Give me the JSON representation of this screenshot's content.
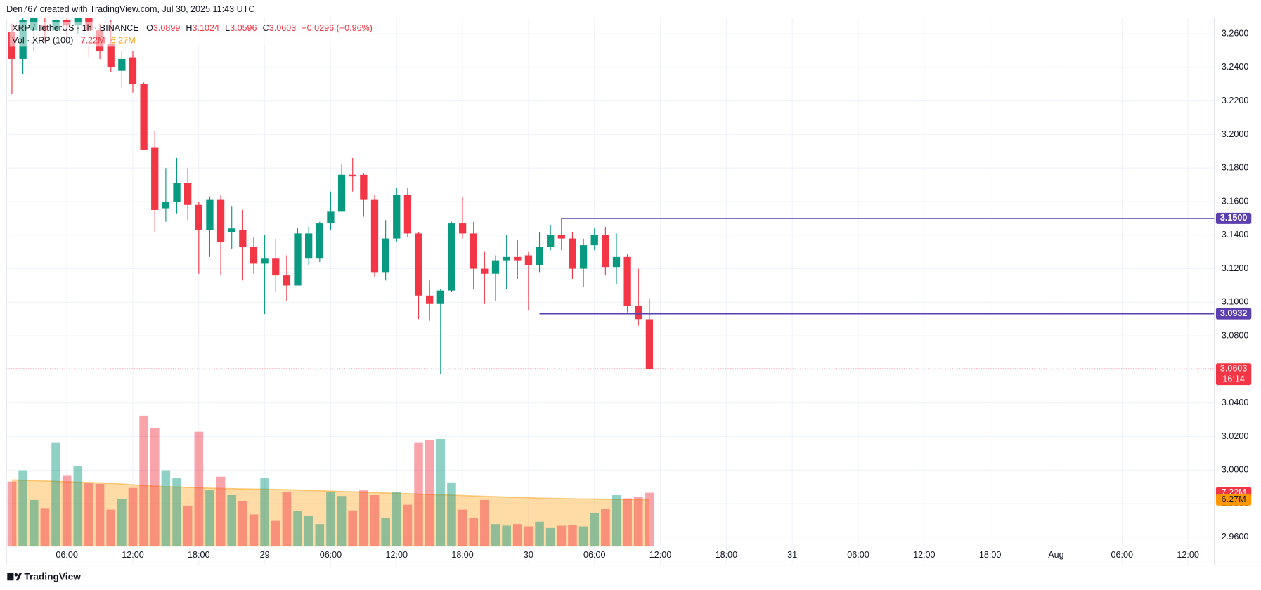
{
  "header": "Den767 created with TradingView.com, Jul 30, 2025 11:43 UTC",
  "footer": "TradingView",
  "chart_data": {
    "type": "candlestick",
    "legend": {
      "symbol": "XRP / TetherUS · 1h · BINANCE",
      "ohlc": [
        {
          "key": "O",
          "value": "3.0899"
        },
        {
          "key": "H",
          "value": "3.1024"
        },
        {
          "key": "L",
          "value": "3.0596"
        },
        {
          "key": "C",
          "value": "3.0603"
        }
      ],
      "change": "−0.0296 (−0.96%)",
      "volume": "Vol · XRP (100)"
    },
    "up_color": "#089981",
    "down_color": "#f23645",
    "open": [
      3.261,
      3.245,
      3.262,
      3.265,
      3.262,
      3.268,
      3.265,
      3.272,
      3.262,
      3.254,
      3.238,
      3.246,
      3.23,
      3.192,
      3.156,
      3.16,
      3.171,
      3.158,
      3.143,
      3.161,
      3.142,
      3.143,
      3.133,
      3.123,
      3.126,
      3.116,
      3.11,
      3.126,
      3.126,
      3.147,
      3.154,
      3.176,
      3.176,
      3.161,
      3.118,
      3.138,
      3.164,
      3.141,
      3.104,
      3.099,
      3.107,
      3.147,
      3.141,
      3.12,
      3.117,
      3.125,
      3.127,
      3.128,
      3.122,
      3.133,
      3.14,
      3.138,
      3.12,
      3.134,
      3.14,
      3.121,
      3.127,
      3.098,
      3.0899
    ],
    "high": [
      3.266,
      3.272,
      3.275,
      3.272,
      3.276,
      3.276,
      3.278,
      3.276,
      3.266,
      3.268,
      3.25,
      3.25,
      3.231,
      3.202,
      3.18,
      3.186,
      3.18,
      3.16,
      3.163,
      3.164,
      3.157,
      3.155,
      3.139,
      3.14,
      3.138,
      3.128,
      3.144,
      3.145,
      3.148,
      3.166,
      3.182,
      3.186,
      3.177,
      3.164,
      3.149,
      3.168,
      3.168,
      3.142,
      3.113,
      3.108,
      3.148,
      3.163,
      3.148,
      3.13,
      3.128,
      3.14,
      3.137,
      3.13,
      3.142,
      3.146,
      3.15,
      3.142,
      3.138,
      3.144,
      3.145,
      3.141,
      3.129,
      3.12,
      3.1024
    ],
    "low": [
      3.224,
      3.236,
      3.25,
      3.255,
      3.258,
      3.258,
      3.26,
      3.246,
      3.245,
      3.237,
      3.228,
      3.225,
      3.191,
      3.142,
      3.148,
      3.153,
      3.149,
      3.117,
      3.127,
      3.116,
      3.132,
      3.113,
      3.117,
      3.093,
      3.106,
      3.101,
      3.11,
      3.122,
      3.124,
      3.143,
      3.154,
      3.166,
      3.151,
      3.115,
      3.113,
      3.136,
      3.139,
      3.09,
      3.089,
      3.057,
      3.106,
      3.138,
      3.108,
      3.099,
      3.101,
      3.108,
      3.114,
      3.095,
      3.118,
      3.131,
      3.131,
      3.114,
      3.109,
      3.131,
      3.116,
      3.111,
      3.094,
      3.086,
      3.0596
    ],
    "close": [
      3.245,
      3.268,
      3.27,
      3.262,
      3.268,
      3.265,
      3.27,
      3.262,
      3.25,
      3.24,
      3.245,
      3.23,
      3.191,
      3.155,
      3.16,
      3.171,
      3.158,
      3.143,
      3.161,
      3.136,
      3.144,
      3.133,
      3.123,
      3.126,
      3.116,
      3.11,
      3.141,
      3.141,
      3.147,
      3.154,
      3.176,
      3.175,
      3.161,
      3.118,
      3.138,
      3.164,
      3.141,
      3.104,
      3.099,
      3.107,
      3.147,
      3.141,
      3.12,
      3.117,
      3.125,
      3.127,
      3.125,
      3.122,
      3.133,
      3.14,
      3.138,
      3.12,
      3.134,
      3.14,
      3.121,
      3.127,
      3.098,
      3.09,
      3.0603
    ],
    "last_price": {
      "value": 3.0603,
      "label": "3.0603",
      "countdown": "16:14"
    },
    "volume": {
      "values": [
        8.73,
        10.24,
        6.25,
        5.17,
        13.91,
        9.59,
        10.78,
        8.52,
        8.41,
        4.96,
        6.36,
        7.87,
        17.57,
        15.95,
        10.24,
        9.16,
        5.5,
        15.42,
        7.55,
        9.38,
        6.9,
        6.14,
        4.31,
        9.16,
        3.45,
        7.33,
        4.74,
        4.1,
        3.02,
        7.33,
        6.79,
        4.85,
        7.55,
        6.9,
        3.88,
        7.33,
        5.61,
        13.91,
        14.34,
        14.45,
        8.62,
        4.96,
        3.88,
        6.25,
        3.02,
        2.8,
        3.02,
        2.7,
        3.34,
        2.48,
        2.8,
        2.91,
        2.7,
        4.53,
        5.07,
        6.9,
        6.47,
        6.68,
        7.22
      ],
      "last_label": "7.22M"
    },
    "volume_ma": {
      "color": "#ff9800",
      "values": [
        8.95,
        8.9,
        8.85,
        8.8,
        8.75,
        8.7,
        8.65,
        8.6,
        8.55,
        8.5,
        8.4,
        8.3,
        8.2,
        8.1,
        8.05,
        8.0,
        7.95,
        7.9,
        7.85,
        7.8,
        7.78,
        7.75,
        7.72,
        7.7,
        7.67,
        7.65,
        7.6,
        7.55,
        7.5,
        7.45,
        7.4,
        7.35,
        7.3,
        7.25,
        7.2,
        7.15,
        7.1,
        7.05,
        7.0,
        6.95,
        6.9,
        6.85,
        6.8,
        6.75,
        6.7,
        6.65,
        6.6,
        6.55,
        6.5,
        6.47,
        6.45,
        6.42,
        6.4,
        6.38,
        6.36,
        6.34,
        6.32,
        6.3,
        6.27
      ],
      "last_label": "6.27M"
    },
    "volume_ylim": [
      0,
      71
    ],
    "levels": [
      {
        "value": 3.15,
        "label": "3.1500",
        "start": 50,
        "color": "#5b3fae"
      },
      {
        "value": 3.0932,
        "label": "3.0932",
        "start": 48,
        "color": "#5b3fae"
      }
    ],
    "xlim": [
      -0.5,
      109.4
    ],
    "xticks": [
      {
        "value": 5,
        "label": "06:00"
      },
      {
        "value": 11,
        "label": "12:00"
      },
      {
        "value": 17,
        "label": "18:00"
      },
      {
        "value": 23,
        "label": "29"
      },
      {
        "value": 29,
        "label": "06:00"
      },
      {
        "value": 35,
        "label": "12:00"
      },
      {
        "value": 41,
        "label": "18:00"
      },
      {
        "value": 47,
        "label": "30"
      },
      {
        "value": 53,
        "label": "06:00"
      },
      {
        "value": 59,
        "label": "12:00"
      },
      {
        "value": 65,
        "label": "18:00"
      },
      {
        "value": 71,
        "label": "31"
      },
      {
        "value": 77,
        "label": "06:00"
      },
      {
        "value": 83,
        "label": "12:00"
      },
      {
        "value": 89,
        "label": "18:00"
      },
      {
        "value": 95,
        "label": "Aug"
      },
      {
        "value": 101,
        "label": "06:00"
      },
      {
        "value": 107,
        "label": "12:00"
      }
    ],
    "ylim": [
      2.9544,
      3.2696
    ],
    "yticks": [
      {
        "value": 3.26,
        "label": "3.2600"
      },
      {
        "value": 3.24,
        "label": "3.2400"
      },
      {
        "value": 3.22,
        "label": "3.2200"
      },
      {
        "value": 3.2,
        "label": "3.2000"
      },
      {
        "value": 3.18,
        "label": "3.1800"
      },
      {
        "value": 3.16,
        "label": "3.1600"
      },
      {
        "value": 3.14,
        "label": "3.1400"
      },
      {
        "value": 3.12,
        "label": "3.1200"
      },
      {
        "value": 3.1,
        "label": "3.1000"
      },
      {
        "value": 3.08,
        "label": "3.0800"
      },
      {
        "value": 3.06,
        "label": "3.0600"
      },
      {
        "value": 3.04,
        "label": "3.0400"
      },
      {
        "value": 3.02,
        "label": "3.0200"
      },
      {
        "value": 3.0,
        "label": "3.0000"
      },
      {
        "value": 2.98,
        "label": "2.9800"
      },
      {
        "value": 2.96,
        "label": "2.9600"
      }
    ],
    "grid": true
  }
}
